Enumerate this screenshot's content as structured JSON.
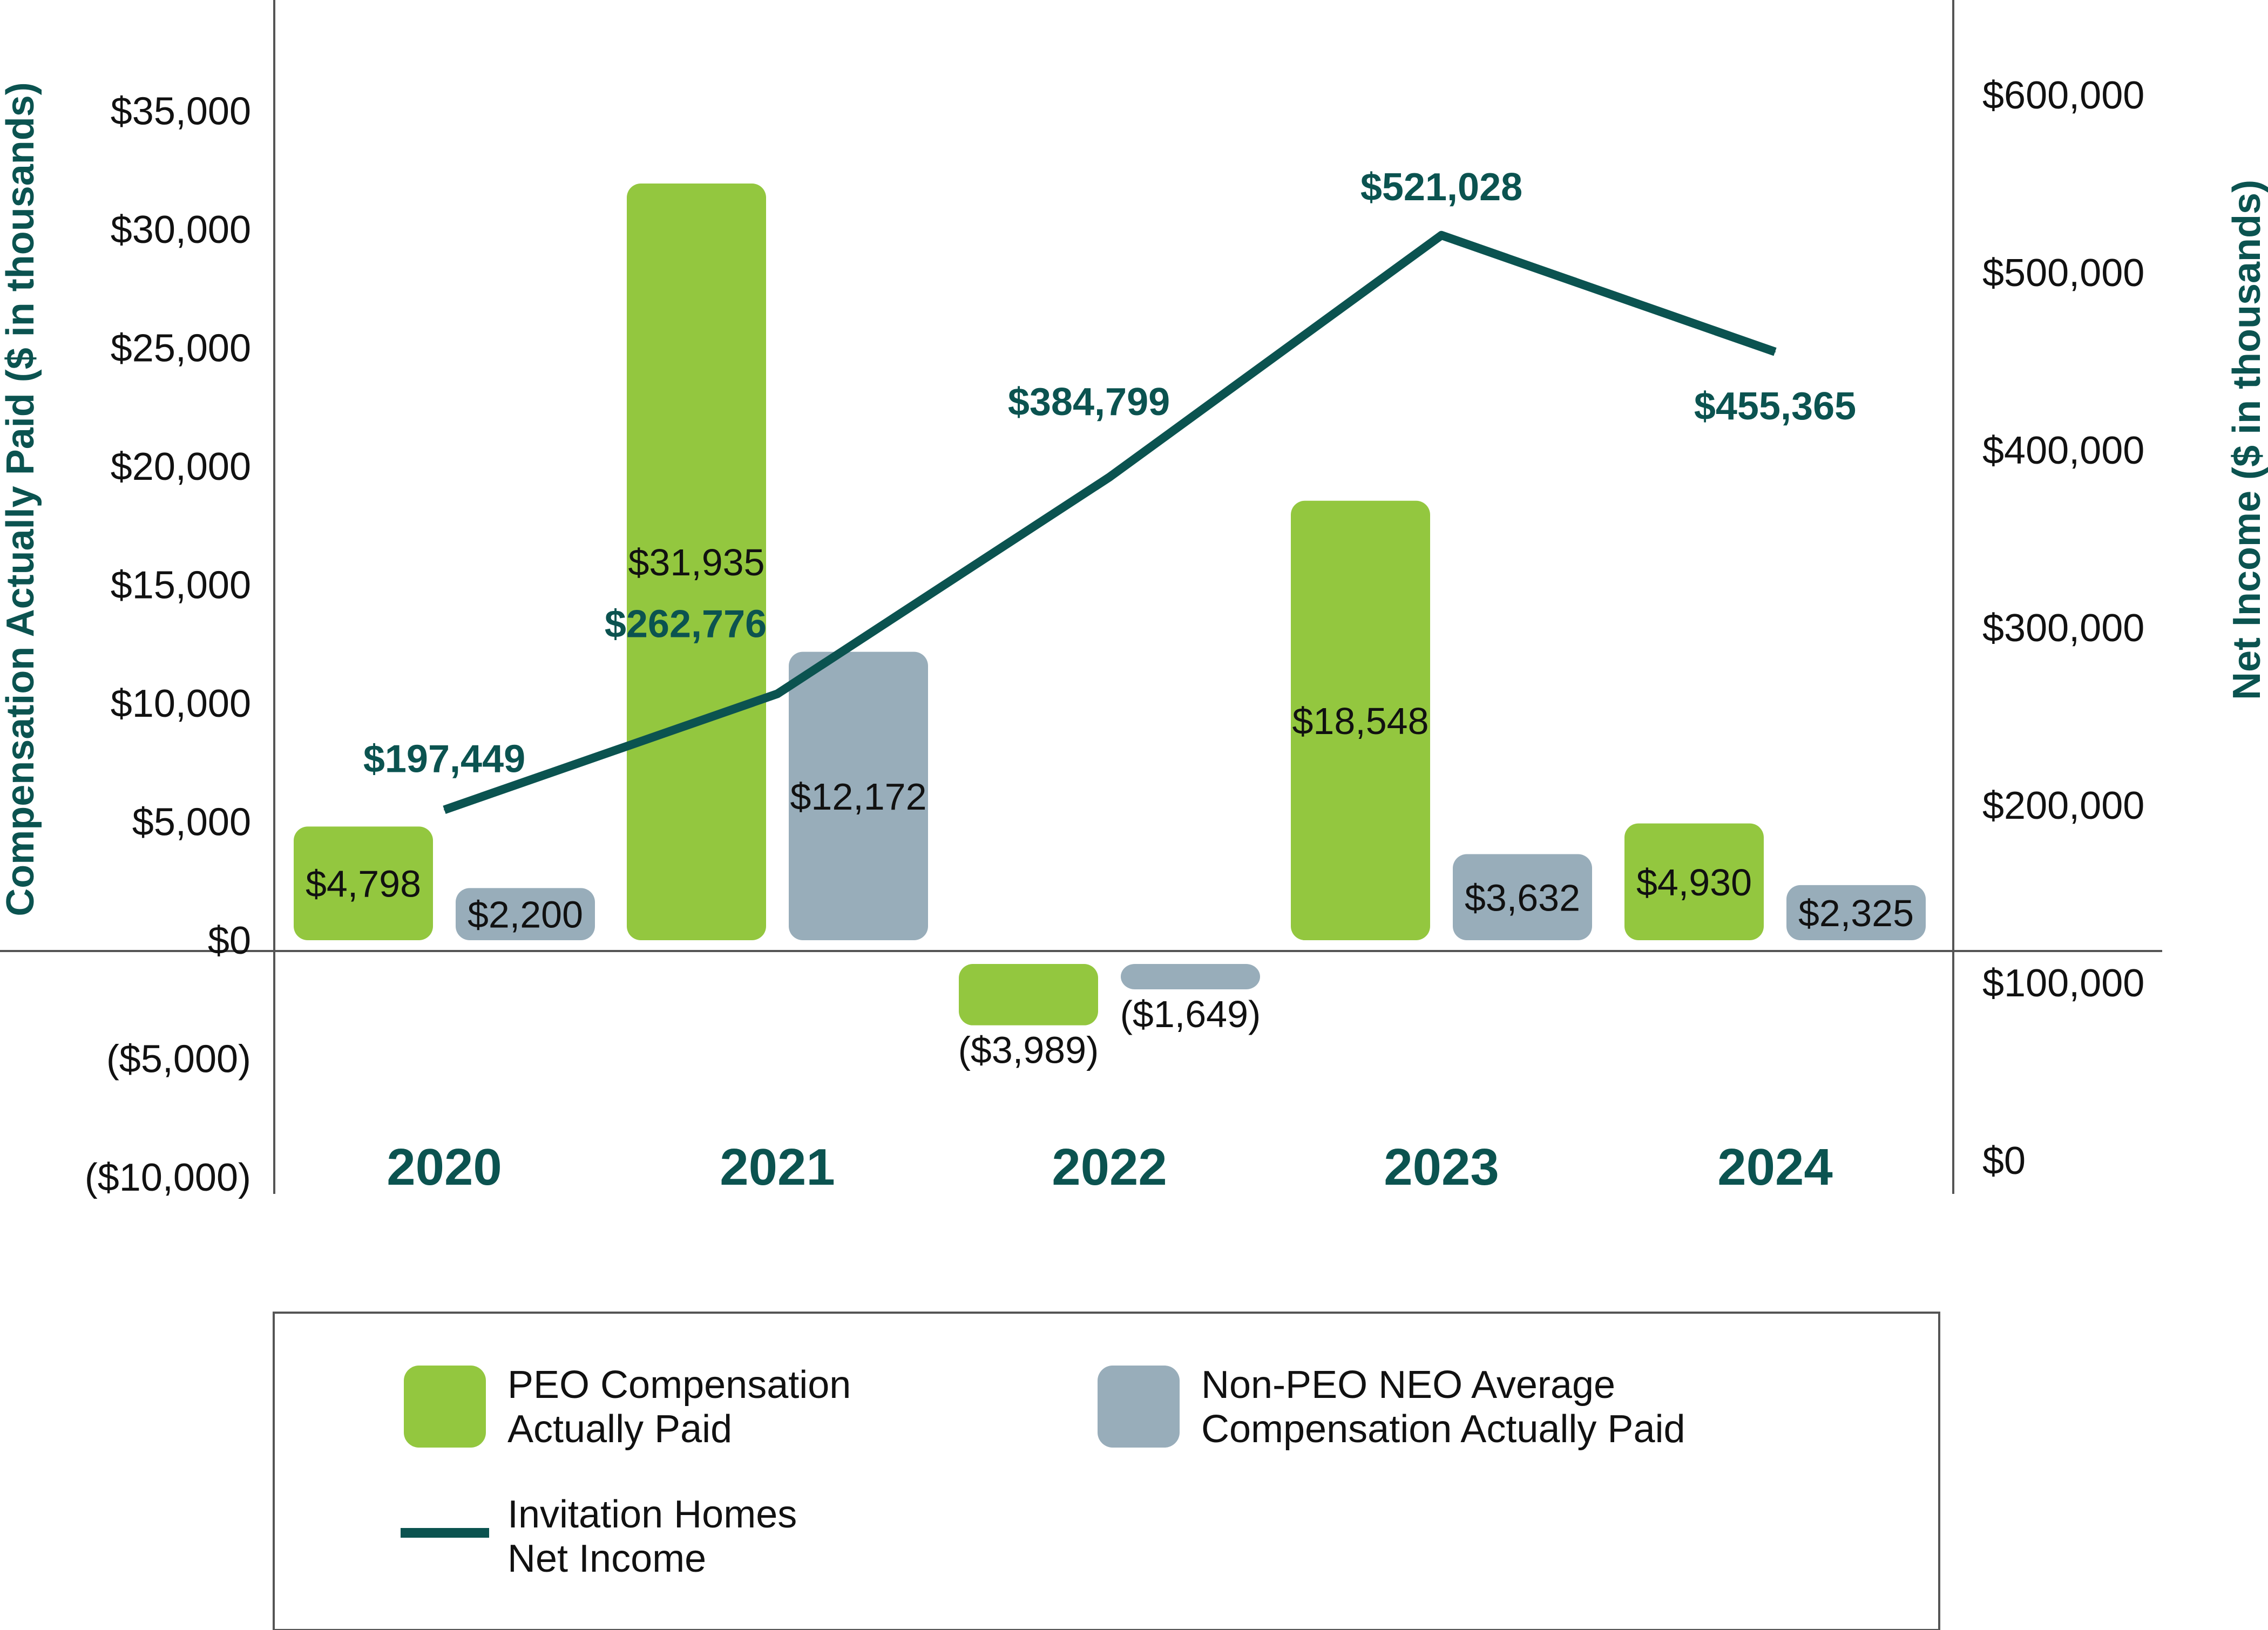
{
  "colors": {
    "peo": "#93C73F",
    "non_peo": "#98ADBA",
    "net_income": "#0B5350",
    "axis": "#555555",
    "text": "#111111"
  },
  "chart_data": {
    "type": "bar",
    "categories": [
      "2020",
      "2021",
      "2022",
      "2023",
      "2024"
    ],
    "left_axis": {
      "label": "Compensation Actually Paid ($ in thousands)",
      "ticks": [
        35000,
        30000,
        25000,
        20000,
        15000,
        10000,
        5000,
        0,
        -5000,
        -10000
      ],
      "tick_labels": [
        "$35,000",
        "$30,000",
        "$25,000",
        "$20,000",
        "$15,000",
        "$10,000",
        "$5,000",
        "$0",
        "($5,000)",
        "($10,000)"
      ],
      "ylim": [
        -10000,
        35000
      ]
    },
    "right_axis": {
      "label": "Net Income ($ in thousands)",
      "ticks": [
        600000,
        500000,
        400000,
        300000,
        200000,
        100000,
        0
      ],
      "tick_labels": [
        "$600,000",
        "$500,000",
        "$400,000",
        "$300,000",
        "$200,000",
        "$100,000",
        "$0"
      ],
      "ylim": [
        0,
        600000
      ]
    },
    "series": [
      {
        "name": "PEO Compensation Actually Paid",
        "type": "bar",
        "axis": "left",
        "values": [
          4798,
          31935,
          -3989,
          18548,
          4930
        ],
        "labels": [
          "$4,798",
          "$31,935",
          "($3,989)",
          "$18,548",
          "$4,930"
        ]
      },
      {
        "name": "Non-PEO NEO Average Compensation Actually Paid",
        "type": "bar",
        "axis": "left",
        "values": [
          2200,
          12172,
          -1649,
          3632,
          2325
        ],
        "labels": [
          "$2,200",
          "$12,172",
          "($1,649)",
          "$3,632",
          "$2,325"
        ]
      },
      {
        "name": "Invitation Homes Net Income",
        "type": "line",
        "axis": "right",
        "values": [
          197449,
          262776,
          384799,
          521028,
          455365
        ],
        "labels": [
          "$197,449",
          "$262,776",
          "$384,799",
          "$521,028",
          "$455,365"
        ]
      }
    ],
    "legend": {
      "position": "bottom",
      "items": [
        {
          "line1": "PEO Compensation",
          "line2": "Actually Paid",
          "kind": "peo"
        },
        {
          "line1": "Non-PEO NEO Average",
          "line2": "Compensation Actually Paid",
          "kind": "non_peo"
        },
        {
          "line1": "Invitation Homes",
          "line2": "Net Income",
          "kind": "net_income"
        }
      ]
    }
  }
}
